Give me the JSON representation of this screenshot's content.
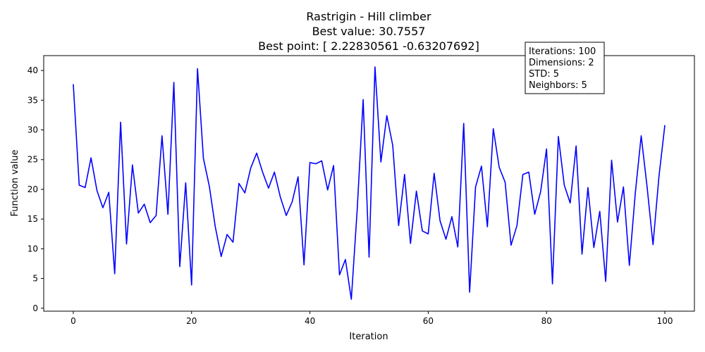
{
  "chart_data": {
    "type": "line",
    "title_lines": [
      "Rastrigin - Hill climber",
      "Best value: 30.7557",
      "Best point: [ 2.22830561 -0.63207692]"
    ],
    "xlabel": "Iteration",
    "ylabel": "Function value",
    "xlim": [
      -5,
      105
    ],
    "ylim": [
      -0.5,
      42.5
    ],
    "xticks": [
      0,
      20,
      40,
      60,
      80,
      100
    ],
    "yticks": [
      0,
      5,
      10,
      15,
      20,
      25,
      30,
      35,
      40
    ],
    "grid": false,
    "line_color": "#0000ff",
    "annotation_lines": [
      "Iterations: 100",
      "Dimensions: 2",
      "STD: 5",
      "Neighbors: 5"
    ],
    "x": [
      0,
      1,
      2,
      3,
      4,
      5,
      6,
      7,
      8,
      9,
      10,
      11,
      12,
      13,
      14,
      15,
      16,
      17,
      18,
      19,
      20,
      21,
      22,
      23,
      24,
      25,
      26,
      27,
      28,
      29,
      30,
      31,
      32,
      33,
      34,
      35,
      36,
      37,
      38,
      39,
      40,
      41,
      42,
      43,
      44,
      45,
      46,
      47,
      48,
      49,
      50,
      51,
      52,
      53,
      54,
      55,
      56,
      57,
      58,
      59,
      60,
      61,
      62,
      63,
      64,
      65,
      66,
      67,
      68,
      69,
      70,
      71,
      72,
      73,
      74,
      75,
      76,
      77,
      78,
      79,
      80,
      81,
      82,
      83,
      84,
      85,
      86,
      87,
      88,
      89,
      90,
      91,
      92,
      93,
      94,
      95,
      96,
      97,
      98,
      99,
      100
    ],
    "values": [
      37.7,
      20.7,
      20.3,
      25.3,
      19.8,
      16.9,
      19.5,
      5.8,
      31.3,
      10.8,
      24.1,
      16.0,
      17.5,
      14.4,
      15.6,
      29.0,
      15.8,
      38.0,
      7.0,
      21.1,
      3.9,
      40.3,
      25.2,
      20.5,
      13.7,
      8.7,
      12.4,
      11.1,
      21.0,
      19.4,
      23.6,
      26.1,
      22.9,
      20.2,
      22.9,
      18.7,
      15.6,
      17.9,
      22.1,
      7.3,
      24.5,
      24.3,
      24.8,
      19.9,
      24.0,
      5.6,
      8.2,
      1.5,
      16.7,
      35.1,
      8.6,
      40.6,
      24.6,
      32.4,
      27.4,
      13.9,
      22.5,
      10.9,
      19.7,
      13.0,
      12.5,
      22.7,
      14.7,
      11.6,
      15.4,
      10.3,
      31.1,
      2.7,
      20.4,
      23.9,
      13.7,
      30.2,
      23.7,
      21.2,
      10.6,
      13.9,
      22.5,
      22.9,
      15.8,
      19.6,
      26.8,
      4.1,
      28.9,
      20.7,
      17.7,
      27.3,
      9.1,
      20.3,
      10.2,
      16.3,
      4.5,
      24.9,
      14.5,
      20.4,
      7.2,
      19.3,
      29.0,
      20.4,
      10.7,
      22.1,
      30.8
    ]
  }
}
